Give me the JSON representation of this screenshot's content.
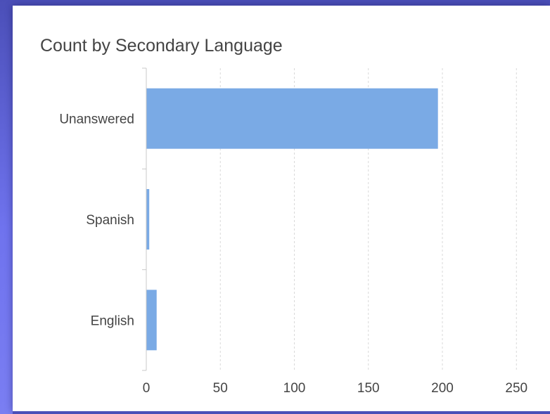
{
  "chart_data": {
    "type": "bar",
    "orientation": "horizontal",
    "title": "Count by Secondary Language",
    "xlabel": "",
    "ylabel": "",
    "categories": [
      "Unanswered",
      "Spanish",
      "English"
    ],
    "values": [
      197,
      2,
      7
    ],
    "xlim": [
      0,
      250
    ],
    "ticks": [
      0,
      50,
      100,
      150,
      200,
      250
    ],
    "grid": "vertical-dashed",
    "legend": "none",
    "bar_color": "#7aaae5"
  }
}
